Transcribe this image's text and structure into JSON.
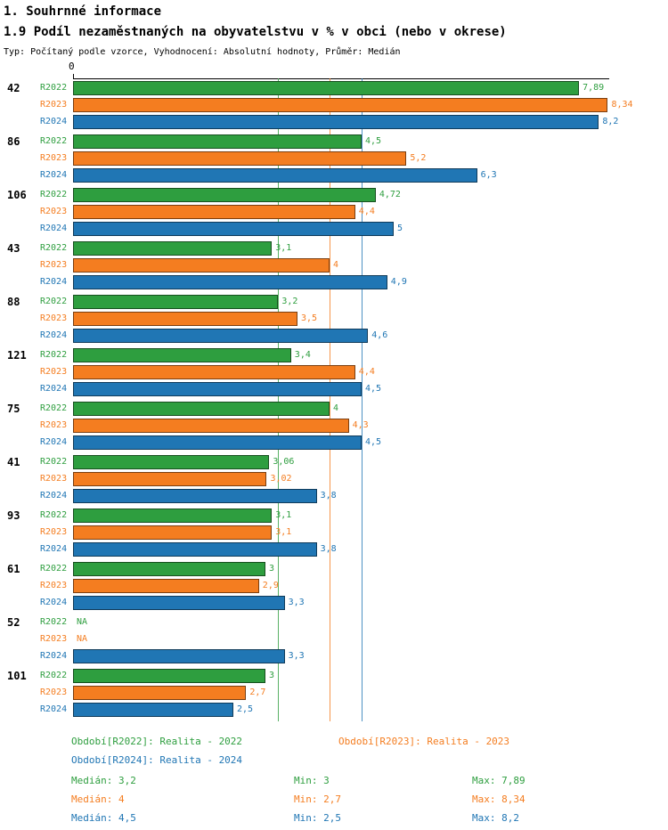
{
  "chart_data": {
    "type": "bar",
    "orientation": "horizontal",
    "title": "1. Souhrnné informace",
    "subtitle": "1.9 Podíl nezaměstnaných na obyvatelstvu v % v obci (nebo v okrese)",
    "meta_line": "Typ: Počítaný podle vzorce, Vyhodnocení: Absolutní hodnoty, Průměr: Medián",
    "axis_origin_label": "0",
    "xlim": [
      0,
      8.6
    ],
    "grid": "median-lines",
    "legend_position": "bottom",
    "categories": [
      "42",
      "86",
      "106",
      "43",
      "88",
      "121",
      "75",
      "41",
      "93",
      "61",
      "52",
      "101"
    ],
    "series": [
      {
        "name": "R2022",
        "color": "#2e9e3f",
        "values": [
          7.89,
          4.5,
          4.72,
          3.1,
          3.2,
          3.4,
          4,
          3.06,
          3.1,
          3,
          null,
          3
        ],
        "value_labels": [
          "7,89",
          "4,5",
          "4,72",
          "3,1",
          "3,2",
          "3,4",
          "4",
          "3,06",
          "3,1",
          "3",
          "NA",
          "3"
        ],
        "median": 3.2
      },
      {
        "name": "R2023",
        "color": "#f47d20",
        "values": [
          8.34,
          5.2,
          4.4,
          4,
          3.5,
          4.4,
          4.3,
          3.02,
          3.1,
          2.9,
          null,
          2.7
        ],
        "value_labels": [
          "8,34",
          "5,2",
          "4,4",
          "4",
          "3,5",
          "4,4",
          "4,3",
          "3,02",
          "3,1",
          "2,9",
          "NA",
          "2,7"
        ],
        "median": 4
      },
      {
        "name": "R2024",
        "color": "#2076b4",
        "values": [
          8.2,
          6.3,
          5,
          4.9,
          4.6,
          4.5,
          4.5,
          3.8,
          3.8,
          3.3,
          3.3,
          2.5
        ],
        "value_labels": [
          "8,2",
          "6,3",
          "5",
          "4,9",
          "4,6",
          "4,5",
          "4,5",
          "3,8",
          "3,8",
          "3,3",
          "3,3",
          "2,5"
        ],
        "median": 4.5
      }
    ],
    "legend": [
      {
        "text": "Období[R2022]: Realita - 2022",
        "color": "#2e9e3f"
      },
      {
        "text": "Období[R2023]: Realita - 2023",
        "color": "#f47d20"
      },
      {
        "text": "Období[R2024]: Realita - 2024",
        "color": "#2076b4"
      }
    ],
    "stats": [
      {
        "median": "Medián: 3,2",
        "min": "Min: 3",
        "max": "Max: 7,89",
        "color": "#2e9e3f"
      },
      {
        "median": "Medián: 4",
        "min": "Min: 2,7",
        "max": "Max: 8,34",
        "color": "#f47d20"
      },
      {
        "median": "Medián: 4,5",
        "min": "Min: 2,5",
        "max": "Max: 8,2",
        "color": "#2076b4"
      }
    ]
  }
}
